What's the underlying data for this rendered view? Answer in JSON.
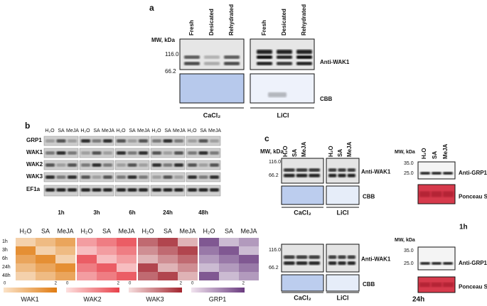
{
  "panel_a": {
    "label": "a",
    "lanes": [
      "Fresh",
      "Desicated",
      "Rehydrated",
      "Fresh",
      "Desicated",
      "Rehydrated"
    ],
    "mw_title": "MW, kDa",
    "mw_markers": [
      "116.0",
      "66.2"
    ],
    "blot_labels": [
      "Anti-WAK1",
      "CBB"
    ],
    "groups": [
      "CaCl₂",
      "LiCl"
    ]
  },
  "panel_b": {
    "label": "b",
    "treatments": [
      "H₂O",
      "SA",
      "MeJA"
    ],
    "genes": [
      "GRP1",
      "WAK1",
      "WAK2",
      "WAK3",
      "EF1a"
    ],
    "times": [
      "1h",
      "3h",
      "6h",
      "24h",
      "48h"
    ],
    "heatmap": {
      "treatments": [
        "H₂O",
        "SA",
        "MeJA"
      ],
      "times": [
        "1h",
        "3h",
        "6h",
        "24h",
        "48h"
      ],
      "scale": [
        "0",
        "2"
      ],
      "genes": [
        "WAK1",
        "WAK2",
        "WAK3",
        "GRP1"
      ]
    }
  },
  "panel_c": {
    "label": "c",
    "mw_title": "MW, kDa",
    "treatments": [
      "H₂O",
      "SA",
      "MeJA"
    ],
    "wak_markers": [
      "116.0",
      "66.2"
    ],
    "grp_markers": [
      "35.0",
      "25.0"
    ],
    "blot_labels": [
      "Anti-WAK1",
      "CBB",
      "Anti-GRP1",
      "Ponceau S"
    ],
    "groups": [
      "CaCl₂",
      "LiCl"
    ],
    "timepoints": [
      "1h",
      "24h"
    ]
  }
}
